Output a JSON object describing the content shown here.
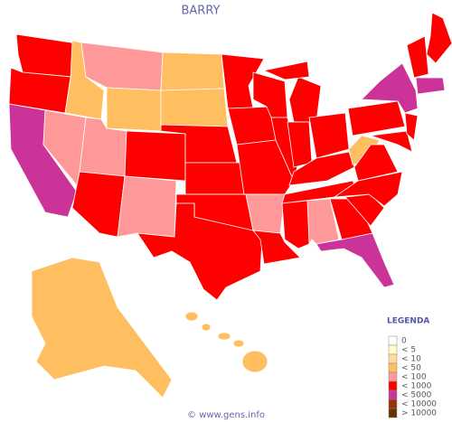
{
  "header": {
    "title": "BARRY"
  },
  "legend": {
    "title": "LEGENDA",
    "items": [
      {
        "label": "0",
        "color": "#ffffff"
      },
      {
        "label": "< 5",
        "color": "#ffffcc"
      },
      {
        "label": "< 10",
        "color": "#ffdd99"
      },
      {
        "label": "< 50",
        "color": "#ffbf60"
      },
      {
        "label": "< 100",
        "color": "#ff9999"
      },
      {
        "label": "< 1000",
        "color": "#ff0000"
      },
      {
        "label": "< 5000",
        "color": "#cc3399"
      },
      {
        "label": "< 10000",
        "color": "#993300"
      },
      {
        "label": "> 10000",
        "color": "#663300"
      }
    ]
  },
  "map": {
    "region_colors": [
      "#ff0000",
      "#ff0000",
      "#cc3399",
      "#ff9999",
      "#ffbf60",
      "#ff9999",
      "#ffbf60",
      "#ff9999",
      "#ff0000",
      "#ff0000",
      "#ff9999",
      "#ffbf60",
      "#ffbf60",
      "#ff0000",
      "#ff0000",
      "#ff0000",
      "#ff0000",
      "#ff0000",
      "#ff0000",
      "#ff0000",
      "#ff9999",
      "#ff0000",
      "#ff0000",
      "#ff0000",
      "#ff0000",
      "#ff0000",
      "#ff0000",
      "#ff0000",
      "#ff0000",
      "#ff0000",
      "#ff9999",
      "#ff0000",
      "#cc3399",
      "#ff0000",
      "#ff0000",
      "#ff0000",
      "#ffbf60",
      "#ff0000",
      "#cc3399",
      "#ff0000",
      "#ff0000",
      "#ff0000",
      "#ff0000",
      "#cc3399",
      "#ffbf60",
      "#ffbf60"
    ]
  },
  "footer": {
    "text": "© www.gens.info"
  }
}
